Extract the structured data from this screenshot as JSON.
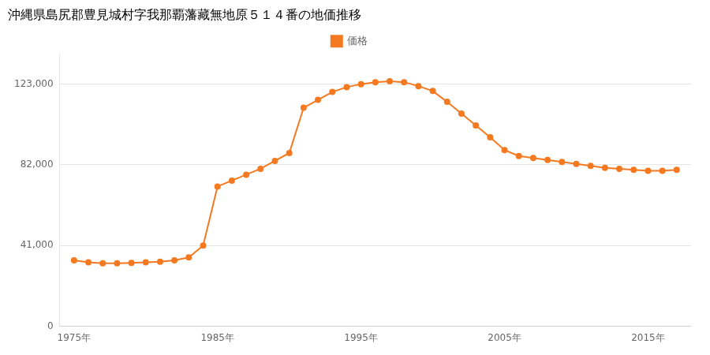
{
  "chart_data": {
    "type": "line",
    "title": "沖縄県島尻郡豊見城村字我那覇藩藏無地原５１４番の地価推移",
    "x": [
      1975,
      1976,
      1977,
      1978,
      1979,
      1980,
      1981,
      1982,
      1983,
      1984,
      1985,
      1986,
      1987,
      1988,
      1989,
      1990,
      1991,
      1992,
      1993,
      1994,
      1995,
      1996,
      1997,
      1998,
      1999,
      2000,
      2001,
      2002,
      2003,
      2004,
      2005,
      2006,
      2007,
      2008,
      2009,
      2010,
      2011,
      2012,
      2013,
      2014,
      2015,
      2016,
      2017
    ],
    "series": [
      {
        "name": "価格",
        "color": "#F47920",
        "values": [
          33500,
          32500,
          32000,
          32000,
          32200,
          32500,
          32800,
          33500,
          35000,
          41000,
          71000,
          74000,
          77000,
          80000,
          84000,
          88000,
          111000,
          115000,
          119000,
          121500,
          123000,
          124000,
          124500,
          124000,
          122000,
          119500,
          114000,
          108000,
          102000,
          96000,
          89500,
          86500,
          85500,
          84500,
          83500,
          82500,
          81500,
          80500,
          80000,
          79500,
          79000,
          79000,
          79500
        ]
      }
    ],
    "marker": "circle",
    "xlim": [
      1974,
      2018
    ],
    "xticks": [
      {
        "value": 1975,
        "label": "1975年"
      },
      {
        "value": 1985,
        "label": "1985年"
      },
      {
        "value": 1995,
        "label": "1995年"
      },
      {
        "value": 2005,
        "label": "2005年"
      },
      {
        "value": 2015,
        "label": "2015年"
      }
    ],
    "ylim": [
      0,
      138000
    ],
    "yticks": [
      0,
      {
        "value": 41000,
        "label": "41,000"
      },
      {
        "value": 82000,
        "label": "82,000"
      },
      {
        "value": 123000,
        "label": "123,000"
      }
    ],
    "grid": "y",
    "legend": "top"
  }
}
